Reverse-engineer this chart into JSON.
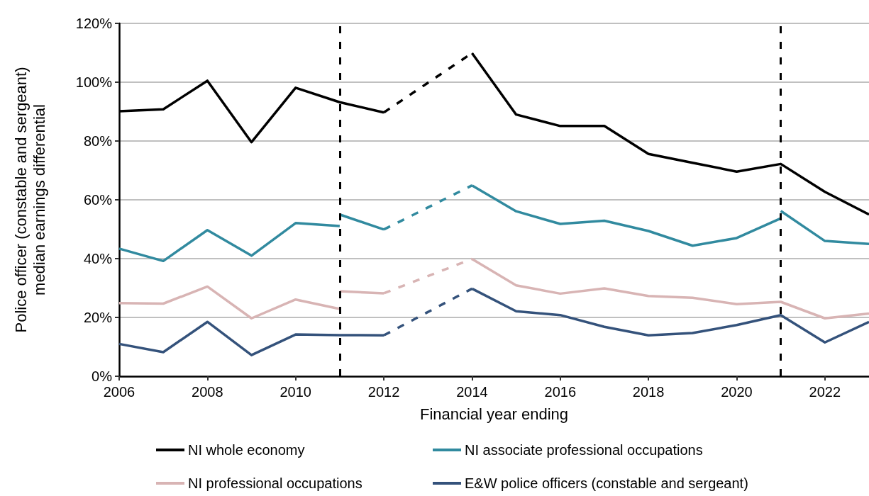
{
  "chart_data": {
    "type": "line",
    "xlabel": "Financial year ending",
    "ylabel": "Police officer (constable and sergeant)\nmedian earnings differential",
    "xlim": [
      2006,
      2023
    ],
    "xticks": [
      2006,
      2008,
      2010,
      2012,
      2014,
      2016,
      2018,
      2020,
      2022
    ],
    "ylim": [
      0,
      120
    ],
    "yticks": [
      {
        "value": 0,
        "label": "0%"
      },
      {
        "value": 20,
        "label": "20%"
      },
      {
        "value": 40,
        "label": "40%"
      },
      {
        "value": 60,
        "label": "60%"
      },
      {
        "value": 80,
        "label": "80%"
      },
      {
        "value": 100,
        "label": "100%"
      },
      {
        "value": 120,
        "label": "120%"
      }
    ],
    "grid": "y",
    "legend": "bottom",
    "marker": "none",
    "ref_lines": [
      {
        "axis": "x",
        "value": 2011,
        "color": "#000000",
        "line_style": "dashed"
      },
      {
        "axis": "x",
        "value": 2021,
        "color": "#000000",
        "line_style": "dashed"
      }
    ],
    "series": [
      {
        "name": "NI whole economy",
        "color": "#000000",
        "line_style": "solid",
        "x": [
          2006,
          2007,
          2008,
          2009,
          2010,
          2011,
          2012
        ],
        "values": [
          90.1,
          90.8,
          100.5,
          79.6,
          98.1,
          93.2,
          89.7
        ]
      },
      {
        "color": "#000000",
        "line_style": "dashed",
        "x": [
          2012,
          2014
        ],
        "values": [
          89.7,
          109.9
        ]
      },
      {
        "color": "#000000",
        "line_style": "solid",
        "x": [
          2014,
          2015,
          2016,
          2017,
          2018,
          2019,
          2020,
          2021,
          2022,
          2023
        ],
        "values": [
          109.9,
          89.0,
          85.1,
          85.1,
          75.6,
          72.6,
          69.6,
          72.2,
          62.7,
          55
        ]
      },
      {
        "name": "NI associate professional occupations",
        "color": "#318a9f",
        "line_style": "solid",
        "x": [
          2006,
          2007,
          2008,
          2009,
          2010,
          2011
        ],
        "values": [
          43.4,
          39.2,
          49.7,
          41.0,
          52.1,
          51.1
        ]
      },
      {
        "color": "#318a9f",
        "line_style": "solid",
        "x": [
          2011,
          2012
        ],
        "values": [
          55.0,
          49.9
        ]
      },
      {
        "color": "#318a9f",
        "line_style": "dashed",
        "x": [
          2012,
          2014
        ],
        "values": [
          49.9,
          64.9
        ]
      },
      {
        "color": "#318a9f",
        "line_style": "solid",
        "x": [
          2014,
          2015,
          2016,
          2017,
          2018,
          2019,
          2020,
          2021
        ],
        "values": [
          64.9,
          56.1,
          51.8,
          52.9,
          49.4,
          44.4,
          47.0,
          53.7
        ]
      },
      {
        "color": "#318a9f",
        "line_style": "solid",
        "x": [
          2021,
          2022,
          2023
        ],
        "values": [
          56.2,
          46.0,
          45
        ]
      },
      {
        "name": "NI professional occupations",
        "color": "#d8b4b4",
        "line_style": "solid",
        "x": [
          2006,
          2007,
          2008,
          2009,
          2010,
          2011
        ],
        "values": [
          24.9,
          24.7,
          30.5,
          19.7,
          26.1,
          22.9
        ]
      },
      {
        "color": "#d8b4b4",
        "line_style": "solid",
        "x": [
          2011,
          2012
        ],
        "values": [
          28.9,
          28.2
        ]
      },
      {
        "color": "#d8b4b4",
        "line_style": "dashed",
        "x": [
          2012,
          2014
        ],
        "values": [
          28.2,
          39.9
        ]
      },
      {
        "color": "#d8b4b4",
        "line_style": "solid",
        "x": [
          2014,
          2015,
          2016,
          2017,
          2018,
          2019,
          2020,
          2021,
          2022,
          2023
        ],
        "values": [
          39.9,
          30.9,
          28.1,
          29.9,
          27.3,
          26.7,
          24.5,
          25.3,
          19.7,
          21.3
        ]
      },
      {
        "name": "E&W police officers (constable and sergeant)",
        "color": "#34527b",
        "line_style": "solid",
        "x": [
          2006,
          2007,
          2008,
          2009,
          2010,
          2011,
          2012
        ],
        "values": [
          11.0,
          8.2,
          18.5,
          7.2,
          14.2,
          14.0,
          13.9
        ]
      },
      {
        "color": "#34527b",
        "line_style": "dashed",
        "x": [
          2012,
          2014
        ],
        "values": [
          13.9,
          29.8
        ]
      },
      {
        "color": "#34527b",
        "line_style": "solid",
        "x": [
          2014,
          2015,
          2016,
          2017,
          2018,
          2019,
          2020,
          2021,
          2022,
          2023
        ],
        "values": [
          29.8,
          22.1,
          20.8,
          16.8,
          13.9,
          14.7,
          17.4,
          20.8,
          11.5,
          18.5
        ]
      }
    ]
  }
}
